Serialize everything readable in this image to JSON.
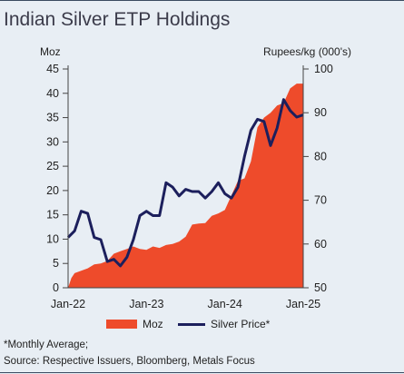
{
  "chart_data": {
    "type": "area+line",
    "title": "Indian Silver ETP Holdings",
    "left_axis": {
      "label": "Moz",
      "ticks": [
        0,
        5,
        10,
        15,
        20,
        25,
        30,
        35,
        40,
        45
      ],
      "range": [
        0,
        45
      ]
    },
    "right_axis": {
      "label": "Rupees/kg (000's)",
      "ticks": [
        50,
        60,
        70,
        80,
        90,
        100
      ],
      "range": [
        50,
        100
      ]
    },
    "x_labels": [
      "Jan-22",
      "Jan-23",
      "Jan-24",
      "Jan-25"
    ],
    "x_range": [
      0,
      36
    ],
    "series": [
      {
        "name": "Moz",
        "type": "area",
        "axis": "left",
        "color": "#ee4b2b",
        "x": [
          0,
          0.5,
          1,
          2,
          3,
          4,
          5,
          6,
          7,
          8,
          9,
          10,
          11,
          12,
          13,
          14,
          15,
          16,
          17,
          18,
          19,
          20,
          21,
          22,
          23,
          24,
          25,
          26,
          27,
          28,
          29,
          30,
          31,
          32,
          33,
          34,
          35,
          36
        ],
        "values": [
          0,
          2.0,
          3.0,
          3.5,
          4.0,
          4.8,
          5.0,
          5.5,
          7.0,
          7.5,
          8.0,
          8.5,
          8.0,
          7.8,
          8.5,
          8.2,
          8.8,
          9.0,
          9.5,
          10.5,
          13.0,
          13.2,
          13.3,
          14.8,
          15.3,
          16.0,
          19.0,
          22.0,
          22.5,
          26.0,
          33.0,
          35.0,
          36.0,
          37.5,
          38.0,
          41.0,
          42.0,
          42.0
        ]
      },
      {
        "name": "Silver Price*",
        "type": "line",
        "axis": "right",
        "color": "#1c1f5c",
        "x": [
          0,
          1,
          2,
          3,
          4,
          5,
          6,
          7,
          8,
          9,
          10,
          11,
          12,
          13,
          14,
          15,
          16,
          17,
          18,
          19,
          20,
          21,
          22,
          23,
          24,
          25,
          26,
          27,
          28,
          29,
          30,
          31,
          32,
          33,
          34,
          35,
          36
        ],
        "values": [
          61.5,
          63,
          67.5,
          67,
          61.5,
          61,
          56,
          56.5,
          55,
          57,
          61,
          66.5,
          67.5,
          66.5,
          66.5,
          74,
          73,
          71,
          72.5,
          72,
          72,
          70.5,
          72,
          74,
          71.5,
          70.5,
          73,
          80,
          86,
          88.5,
          88,
          82.5,
          86.5,
          93,
          90.5,
          89,
          89.5
        ]
      }
    ],
    "legend": {
      "position": "bottom"
    }
  },
  "footnotes": {
    "monthly": "*Monthly Average;",
    "source": "Source: Respective Issuers, Bloomberg, Metals Focus"
  }
}
